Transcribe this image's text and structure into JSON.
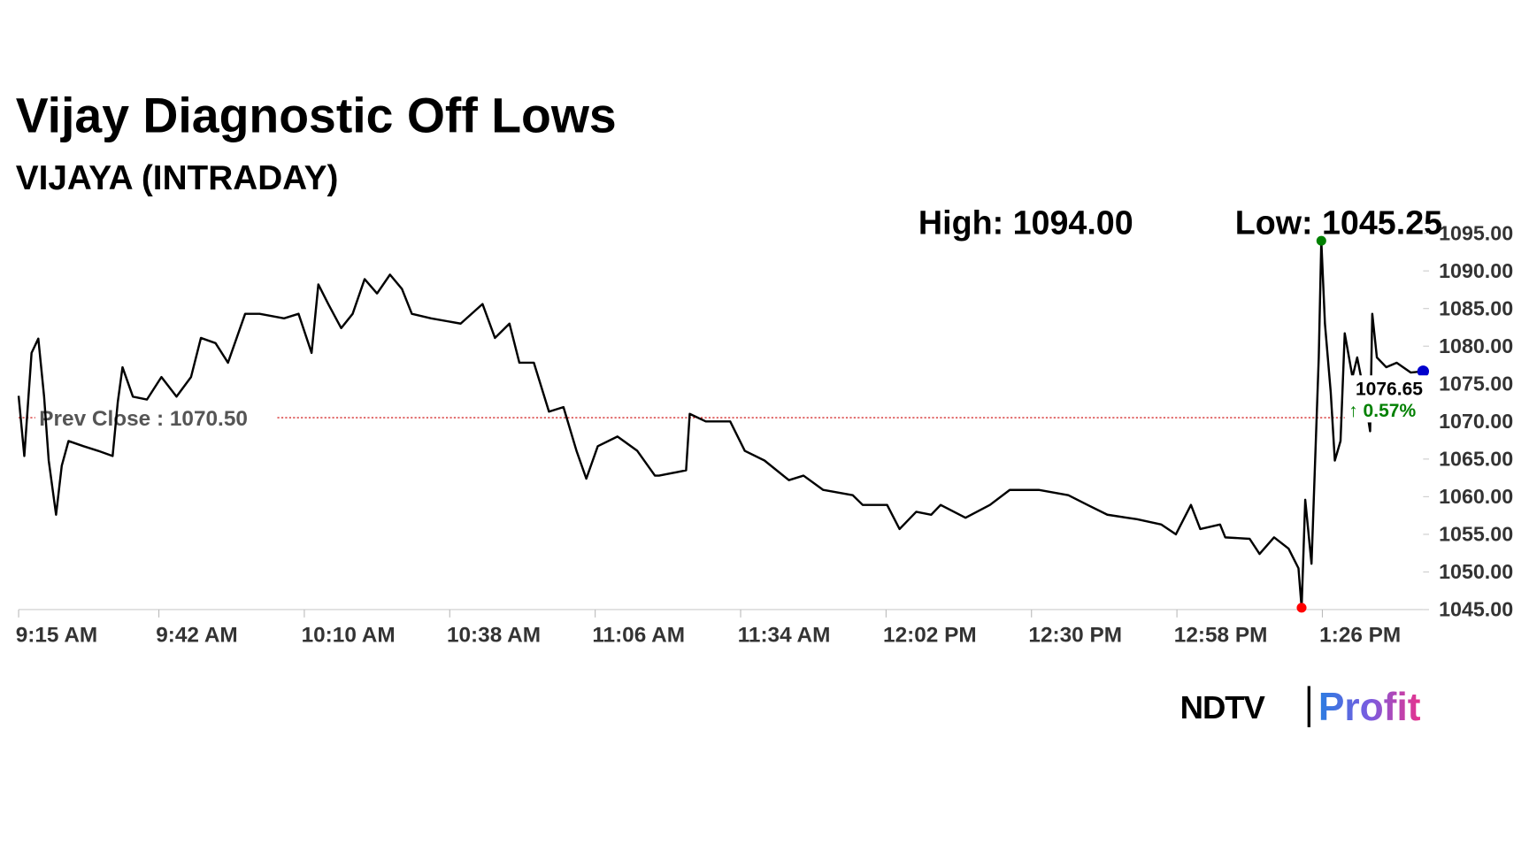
{
  "chart_data": {
    "type": "line",
    "title": "Vijay Diagnostic Off Lows",
    "subtitle": "VIJAYA (INTRADAY)",
    "high": {
      "value": 1094,
      "label": "High: 1094.00"
    },
    "low": {
      "value": 1045.25,
      "label": "Low: 1045.25"
    },
    "prev_close": {
      "value": 1070.5,
      "label": "Prev Close : 1070.50"
    },
    "last": {
      "value": 1076.65,
      "label": "1076.65"
    },
    "change": {
      "value": 0.57,
      "label": "↑ 0.57%"
    },
    "xlim": [
      0,
      270.4
    ],
    "xticks": [
      {
        "value": 0,
        "label": "9:15 AM"
      },
      {
        "value": 27,
        "label": "9:42 AM"
      },
      {
        "value": 55,
        "label": "10:10 AM"
      },
      {
        "value": 83,
        "label": "10:38 AM"
      },
      {
        "value": 111,
        "label": "11:06 AM"
      },
      {
        "value": 139,
        "label": "11:34 AM"
      },
      {
        "value": 167,
        "label": "12:02 PM"
      },
      {
        "value": 195,
        "label": "12:30 PM"
      },
      {
        "value": 223,
        "label": "12:58 PM"
      },
      {
        "value": 251,
        "label": "1:26 PM"
      }
    ],
    "ylim": [
      1045,
      1095
    ],
    "yticks": [
      {
        "value": 1045,
        "label": "1045.00"
      },
      {
        "value": 1050,
        "label": "1050.00"
      },
      {
        "value": 1055,
        "label": "1055.00"
      },
      {
        "value": 1060,
        "label": "1060.00"
      },
      {
        "value": 1065,
        "label": "1065.00"
      },
      {
        "value": 1070,
        "label": "1070.00"
      },
      {
        "value": 1075,
        "label": "1075.00"
      },
      {
        "value": 1080,
        "label": "1080.00"
      },
      {
        "value": 1085,
        "label": "1085.00"
      },
      {
        "value": 1090,
        "label": "1090.00"
      },
      {
        "value": 1095,
        "label": "1095.00"
      }
    ],
    "series": [
      {
        "color": "#000000",
        "x": [
          0,
          1.1,
          2.5,
          3.8,
          4.9,
          5.8,
          7.2,
          8.3,
          9.6,
          12.5,
          15.3,
          18.1,
          19.1,
          20,
          22,
          24.7,
          27.5,
          30.4,
          33.2,
          35.1,
          37.9,
          40.3,
          43.6,
          46.4,
          51.1,
          53.9,
          56.4,
          57.7,
          59.6,
          62.1,
          64.3,
          66.6,
          69,
          71.5,
          73.8,
          75.7,
          79.4,
          85.1,
          89.3,
          91.7,
          94.5,
          96.4,
          99.2,
          102.1,
          104.9,
          107.4,
          109.3,
          111.5,
          115.3,
          119.1,
          122.5,
          123.3,
          128.5,
          129.2,
          132.3,
          137,
          139.8,
          143.6,
          148.3,
          151.1,
          154.9,
          160.6,
          162.5,
          167.2,
          169.6,
          172.8,
          175.7,
          177.5,
          182.3,
          187,
          190.8,
          196.4,
          202.1,
          205.8,
          209.6,
          215.3,
          220,
          222.8,
          225.7,
          227.5,
          231.3,
          232.3,
          237,
          238.9,
          241.7,
          244.5,
          246.4,
          247,
          247.7,
          248.9,
          250.3,
          250.8,
          251.5,
          252.6,
          253.4,
          254.5,
          255.3,
          256.8,
          257.7,
          259,
          260.2,
          260.6,
          261.5,
          263.3,
          265.3,
          268,
          270.4
        ],
        "values": [
          1073.4,
          1065.4,
          1079.1,
          1081,
          1073.3,
          1064.8,
          1057.6,
          1064.1,
          1067.4,
          1066.7,
          1066.1,
          1065.4,
          1072.6,
          1077.2,
          1073.3,
          1072.9,
          1075.9,
          1073.3,
          1075.9,
          1081.1,
          1080.4,
          1077.8,
          1084.3,
          1084.3,
          1083.7,
          1084.3,
          1079.1,
          1088.2,
          1085.6,
          1082.4,
          1084.3,
          1088.9,
          1087,
          1089.5,
          1087.6,
          1084.3,
          1083.7,
          1083,
          1085.6,
          1081.1,
          1083,
          1077.8,
          1077.8,
          1071.3,
          1071.9,
          1066.1,
          1062.4,
          1066.7,
          1068,
          1066.1,
          1062.8,
          1062.8,
          1063.5,
          1071,
          1070,
          1070,
          1066.1,
          1064.8,
          1062.2,
          1062.8,
          1060.9,
          1060.2,
          1058.9,
          1058.9,
          1055.7,
          1058,
          1057.6,
          1058.9,
          1057.2,
          1058.9,
          1060.9,
          1060.9,
          1060.2,
          1058.9,
          1057.6,
          1057,
          1056.3,
          1055,
          1058.9,
          1055.7,
          1056.3,
          1054.6,
          1054.4,
          1052.4,
          1054.6,
          1053.1,
          1050.5,
          1045.25,
          1059.6,
          1051.1,
          1078.5,
          1094,
          1083,
          1073.9,
          1064.8,
          1067.4,
          1081.7,
          1075.9,
          1078.5,
          1073.9,
          1068.7,
          1084.3,
          1078.5,
          1077.2,
          1077.8,
          1076.5,
          1076.65
        ]
      }
    ],
    "high_color": "#008000",
    "low_color": "#ff0000",
    "last_color": "#0000cc",
    "prev_close_color": "#cc0000",
    "change_color": "#008000"
  },
  "logo": {
    "left": "NDTV",
    "right": "Profit"
  }
}
